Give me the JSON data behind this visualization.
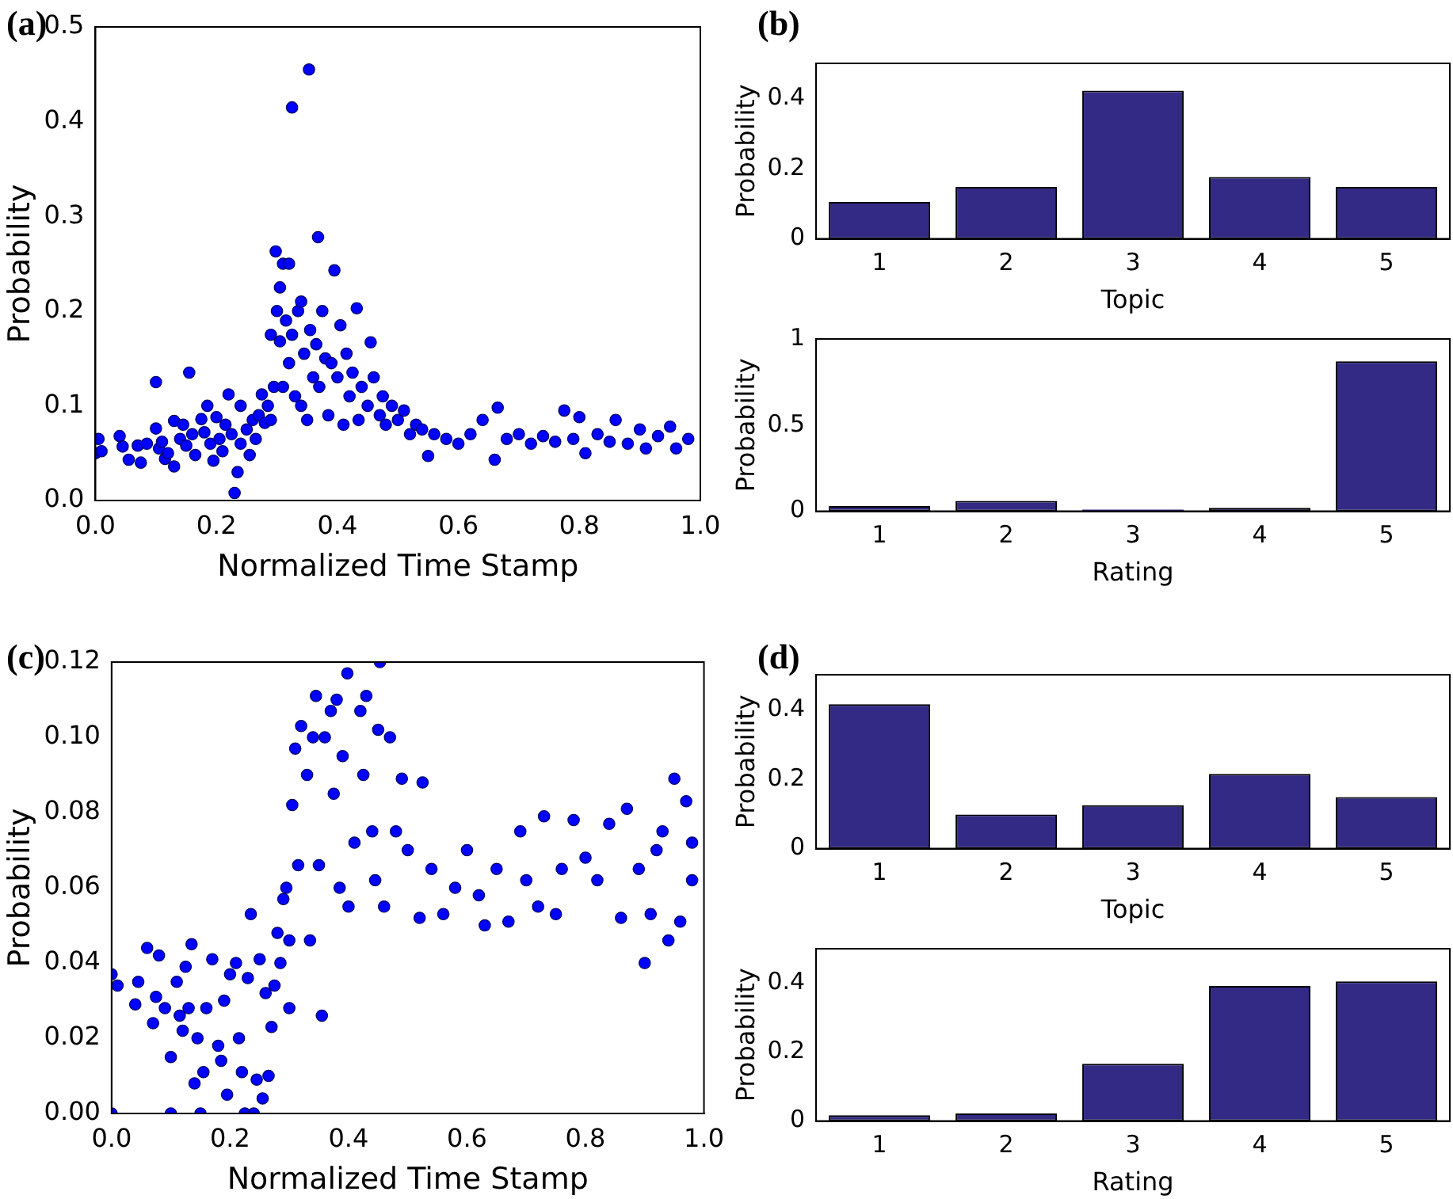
{
  "chart_data": [
    {
      "type": "scatter",
      "title": "(a)",
      "xlabel": "Normalized Time Stamp",
      "ylabel": "Probability",
      "marker": "circle",
      "grid": false,
      "legend": false,
      "xlim": [
        0,
        1
      ],
      "xticks": [
        {
          "value": 0,
          "label": "0.0"
        },
        {
          "value": 0.2,
          "label": "0.2"
        },
        {
          "value": 0.4,
          "label": "0.4"
        },
        {
          "value": 0.6,
          "label": "0.6"
        },
        {
          "value": 0.8,
          "label": "0.8"
        },
        {
          "value": 1,
          "label": "1.0"
        }
      ],
      "ylim": [
        0,
        0.5
      ],
      "yticks": [
        {
          "value": 0,
          "label": "0.0"
        },
        {
          "value": 0.1,
          "label": "0.1"
        },
        {
          "value": 0.2,
          "label": "0.2"
        },
        {
          "value": 0.3,
          "label": "0.3"
        },
        {
          "value": 0.4,
          "label": "0.4"
        },
        {
          "value": 0.5,
          "label": "0.5"
        }
      ],
      "series": [
        {
          "color": "#0000ff",
          "x": [
            0.0,
            0.005,
            0.01,
            0.04,
            0.045,
            0.055,
            0.07,
            0.075,
            0.085,
            0.1,
            0.1,
            0.105,
            0.11,
            0.115,
            0.12,
            0.13,
            0.13,
            0.14,
            0.145,
            0.15,
            0.155,
            0.16,
            0.165,
            0.175,
            0.18,
            0.185,
            0.19,
            0.195,
            0.2,
            0.205,
            0.21,
            0.215,
            0.22,
            0.225,
            0.23,
            0.235,
            0.24,
            0.24,
            0.25,
            0.255,
            0.26,
            0.265,
            0.27,
            0.275,
            0.28,
            0.285,
            0.29,
            0.29,
            0.295,
            0.298,
            0.3,
            0.305,
            0.305,
            0.31,
            0.31,
            0.315,
            0.32,
            0.32,
            0.325,
            0.325,
            0.33,
            0.335,
            0.34,
            0.34,
            0.345,
            0.35,
            0.353,
            0.355,
            0.36,
            0.365,
            0.368,
            0.37,
            0.375,
            0.38,
            0.385,
            0.39,
            0.395,
            0.4,
            0.405,
            0.41,
            0.415,
            0.42,
            0.425,
            0.432,
            0.435,
            0.44,
            0.45,
            0.455,
            0.46,
            0.47,
            0.475,
            0.48,
            0.49,
            0.5,
            0.51,
            0.52,
            0.53,
            0.54,
            0.55,
            0.56,
            0.58,
            0.6,
            0.62,
            0.64,
            0.66,
            0.665,
            0.68,
            0.7,
            0.72,
            0.74,
            0.76,
            0.775,
            0.79,
            0.8,
            0.81,
            0.83,
            0.85,
            0.86,
            0.88,
            0.9,
            0.91,
            0.93,
            0.95,
            0.96,
            0.98
          ],
          "values": [
            0.05,
            0.065,
            0.052,
            0.068,
            0.057,
            0.043,
            0.058,
            0.04,
            0.06,
            0.125,
            0.076,
            0.055,
            0.062,
            0.044,
            0.05,
            0.084,
            0.036,
            0.065,
            0.08,
            0.058,
            0.135,
            0.07,
            0.048,
            0.086,
            0.072,
            0.1,
            0.06,
            0.042,
            0.088,
            0.065,
            0.052,
            0.08,
            0.112,
            0.07,
            0.008,
            0.03,
            0.1,
            0.06,
            0.075,
            0.048,
            0.085,
            0.065,
            0.09,
            0.112,
            0.082,
            0.1,
            0.085,
            0.175,
            0.12,
            0.263,
            0.2,
            0.225,
            0.168,
            0.25,
            0.12,
            0.19,
            0.25,
            0.145,
            0.415,
            0.175,
            0.11,
            0.2,
            0.21,
            0.1,
            0.155,
            0.085,
            0.455,
            0.18,
            0.13,
            0.165,
            0.278,
            0.12,
            0.2,
            0.15,
            0.09,
            0.145,
            0.243,
            0.13,
            0.185,
            0.08,
            0.155,
            0.11,
            0.135,
            0.203,
            0.085,
            0.12,
            0.1,
            0.167,
            0.13,
            0.09,
            0.11,
            0.08,
            0.1,
            0.085,
            0.095,
            0.07,
            0.08,
            0.075,
            0.047,
            0.07,
            0.065,
            0.06,
            0.07,
            0.085,
            0.043,
            0.098,
            0.065,
            0.07,
            0.06,
            0.068,
            0.062,
            0.095,
            0.065,
            0.088,
            0.05,
            0.07,
            0.062,
            0.085,
            0.06,
            0.075,
            0.055,
            0.068,
            0.078,
            0.055,
            0.065
          ]
        }
      ]
    },
    {
      "type": "bar",
      "title": "(b)",
      "xlabel": "Topic",
      "ylabel": "Probability",
      "grid": false,
      "legend": false,
      "categories": [
        "1",
        "2",
        "3",
        "4",
        "5"
      ],
      "ylim": [
        0,
        0.5
      ],
      "yticks": [
        0,
        0.2,
        0.4
      ],
      "series": [
        {
          "color": "#332a85",
          "values": [
            0.105,
            0.148,
            0.422,
            0.176,
            0.148
          ]
        }
      ]
    },
    {
      "type": "bar",
      "xlabel": "Rating",
      "ylabel": "Probability",
      "grid": false,
      "legend": false,
      "categories": [
        "1",
        "2",
        "3",
        "4",
        "5"
      ],
      "ylim": [
        0,
        1
      ],
      "yticks": [
        0,
        0.5,
        1
      ],
      "series": [
        {
          "color": "#332a85",
          "values": [
            0.03,
            0.06,
            0.01,
            0.02,
            0.87
          ]
        }
      ]
    },
    {
      "type": "scatter",
      "title": "(c)",
      "xlabel": "Normalized Time Stamp",
      "ylabel": "Probability",
      "marker": "circle",
      "grid": false,
      "legend": false,
      "xlim": [
        0,
        1
      ],
      "xticks": [
        {
          "value": 0,
          "label": "0.0"
        },
        {
          "value": 0.2,
          "label": "0.2"
        },
        {
          "value": 0.4,
          "label": "0.4"
        },
        {
          "value": 0.6,
          "label": "0.6"
        },
        {
          "value": 0.8,
          "label": "0.8"
        },
        {
          "value": 1,
          "label": "1.0"
        }
      ],
      "ylim": [
        0,
        0.12
      ],
      "yticks": [
        {
          "value": 0,
          "label": "0.00"
        },
        {
          "value": 0.02,
          "label": "0.02"
        },
        {
          "value": 0.04,
          "label": "0.04"
        },
        {
          "value": 0.06,
          "label": "0.06"
        },
        {
          "value": 0.08,
          "label": "0.08"
        },
        {
          "value": 0.1,
          "label": "0.10"
        },
        {
          "value": 0.12,
          "label": "0.12"
        }
      ],
      "series": [
        {
          "color": "#0000ff",
          "x": [
            0.0,
            0.0,
            0.01,
            0.04,
            0.045,
            0.06,
            0.07,
            0.075,
            0.08,
            0.09,
            0.1,
            0.1,
            0.11,
            0.115,
            0.12,
            0.125,
            0.13,
            0.135,
            0.14,
            0.145,
            0.15,
            0.155,
            0.16,
            0.17,
            0.18,
            0.185,
            0.19,
            0.195,
            0.2,
            0.21,
            0.215,
            0.22,
            0.225,
            0.23,
            0.235,
            0.24,
            0.245,
            0.25,
            0.255,
            0.26,
            0.265,
            0.27,
            0.275,
            0.28,
            0.285,
            0.29,
            0.295,
            0.3,
            0.3,
            0.305,
            0.31,
            0.315,
            0.32,
            0.33,
            0.335,
            0.34,
            0.345,
            0.35,
            0.355,
            0.36,
            0.37,
            0.375,
            0.38,
            0.385,
            0.39,
            0.398,
            0.4,
            0.41,
            0.42,
            0.425,
            0.43,
            0.44,
            0.445,
            0.45,
            0.453,
            0.46,
            0.47,
            0.48,
            0.49,
            0.5,
            0.52,
            0.525,
            0.54,
            0.56,
            0.58,
            0.6,
            0.62,
            0.63,
            0.65,
            0.67,
            0.69,
            0.7,
            0.72,
            0.73,
            0.75,
            0.76,
            0.78,
            0.8,
            0.82,
            0.84,
            0.86,
            0.87,
            0.89,
            0.9,
            0.91,
            0.92,
            0.93,
            0.94,
            0.95,
            0.96,
            0.97,
            0.98,
            0.98
          ],
          "values": [
            0.037,
            0.0,
            0.034,
            0.029,
            0.035,
            0.044,
            0.024,
            0.031,
            0.042,
            0.028,
            0.0,
            0.015,
            0.035,
            0.026,
            0.022,
            0.039,
            0.028,
            0.045,
            0.008,
            0.02,
            0.0,
            0.011,
            0.028,
            0.041,
            0.018,
            0.014,
            0.03,
            0.005,
            0.037,
            0.04,
            0.02,
            0.011,
            0.0,
            0.036,
            0.053,
            0.0,
            0.009,
            0.041,
            0.004,
            0.032,
            0.01,
            0.023,
            0.034,
            0.048,
            0.04,
            0.057,
            0.06,
            0.046,
            0.028,
            0.082,
            0.097,
            0.066,
            0.103,
            0.09,
            0.046,
            0.1,
            0.111,
            0.066,
            0.026,
            0.1,
            0.107,
            0.085,
            0.11,
            0.06,
            0.095,
            0.117,
            0.055,
            0.072,
            0.107,
            0.09,
            0.111,
            0.075,
            0.062,
            0.102,
            0.12,
            0.055,
            0.1,
            0.075,
            0.089,
            0.07,
            0.052,
            0.088,
            0.065,
            0.053,
            0.06,
            0.07,
            0.058,
            0.05,
            0.065,
            0.051,
            0.075,
            0.062,
            0.055,
            0.079,
            0.053,
            0.065,
            0.078,
            0.068,
            0.062,
            0.077,
            0.052,
            0.081,
            0.065,
            0.04,
            0.053,
            0.07,
            0.075,
            0.046,
            0.089,
            0.051,
            0.083,
            0.062,
            0.072
          ]
        }
      ]
    },
    {
      "type": "bar",
      "title": "(d)",
      "xlabel": "Topic",
      "ylabel": "Probability",
      "grid": false,
      "legend": false,
      "categories": [
        "1",
        "2",
        "3",
        "4",
        "5"
      ],
      "ylim": [
        0,
        0.5
      ],
      "yticks": [
        0,
        0.2,
        0.4
      ],
      "series": [
        {
          "color": "#332a85",
          "values": [
            0.415,
            0.098,
            0.125,
            0.215,
            0.148
          ]
        }
      ]
    },
    {
      "type": "bar",
      "xlabel": "Rating",
      "ylabel": "Probability",
      "grid": false,
      "legend": false,
      "categories": [
        "1",
        "2",
        "3",
        "4",
        "5"
      ],
      "ylim": [
        0,
        0.5
      ],
      "yticks": [
        0,
        0.2,
        0.4
      ],
      "series": [
        {
          "color": "#332a85",
          "values": [
            0.017,
            0.022,
            0.166,
            0.392,
            0.405
          ]
        }
      ]
    }
  ]
}
